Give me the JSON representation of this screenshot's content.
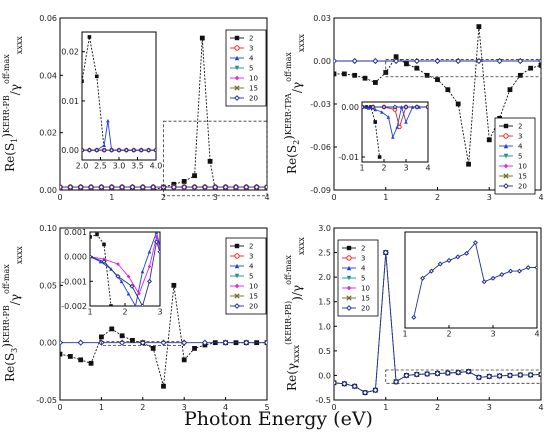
{
  "figure": {
    "xlabel": "Photon Energy  (eV)"
  },
  "series_styles": {
    "2": {
      "color": "#111111",
      "marker": "square-filled"
    },
    "3": {
      "color": "#e8241c",
      "marker": "circle-open"
    },
    "4": {
      "color": "#2040e0",
      "marker": "triangle-up"
    },
    "5": {
      "color": "#1a8f8f",
      "marker": "triangle-down"
    },
    "10": {
      "color": "#e020e0",
      "marker": "diamond"
    },
    "15": {
      "color": "#6b6b1a",
      "marker": "x"
    },
    "20": {
      "color": "#203090",
      "marker": "diamond-open"
    }
  },
  "chart_data": [
    {
      "id": "p1",
      "type": "line",
      "ylabel_main": "Re(S",
      "ylabel_sub": "1",
      "ylabel_tail": ")",
      "ylabel_sup": "KERR-PB",
      "ylabel_tail2": "/γ",
      "ylabel_sup2": "off-max",
      "ylabel_sub2": "xxxx",
      "xlim": [
        0,
        4
      ],
      "ylim": [
        0,
        0.06
      ],
      "xticks": [
        "0",
        "1",
        "2",
        "3",
        "4"
      ],
      "yticks": [
        "0.00",
        "0.02",
        "0.04",
        "0.06"
      ],
      "legend": [
        "2",
        "3",
        "4",
        "5",
        "10",
        "15",
        "20"
      ],
      "series": [
        {
          "name": "2",
          "x": [
            0,
            0.2,
            0.4,
            0.6,
            0.8,
            1.0,
            1.2,
            1.4,
            1.6,
            1.8,
            2.0,
            2.2,
            2.4,
            2.6,
            2.75,
            2.9,
            3.0,
            3.2,
            3.4,
            3.6,
            3.8,
            4.0
          ],
          "y": [
            0,
            0,
            0,
            0,
            0,
            0,
            0,
            0,
            0,
            0,
            0.001,
            0.002,
            0.003,
            0.005,
            0.053,
            0.01,
            0,
            0,
            0,
            0,
            0,
            0
          ]
        },
        {
          "name": "3",
          "x": [
            0,
            0.2,
            0.4,
            0.6,
            0.8,
            1.0,
            1.2,
            1.4,
            1.6,
            1.8,
            2.0,
            2.2,
            2.4,
            2.6,
            2.8,
            3.0,
            3.2,
            3.4,
            3.6,
            3.8,
            4.0
          ],
          "y": [
            0.001,
            0.001,
            0.001,
            0.001,
            0.001,
            0.001,
            0.001,
            0.001,
            0.001,
            0.001,
            0.001,
            0.001,
            0.001,
            0.001,
            0.001,
            0.001,
            0.001,
            0.001,
            0.001,
            0.001,
            0.001
          ]
        },
        {
          "name": "20",
          "x": [
            0,
            0.2,
            0.4,
            0.6,
            0.8,
            1.0,
            1.2,
            1.4,
            1.6,
            1.8,
            2.0,
            2.2,
            2.4,
            2.6,
            2.8,
            3.0,
            3.2,
            3.4,
            3.6,
            3.8,
            4.0
          ],
          "y": [
            0.001,
            0.001,
            0.001,
            0.001,
            0.001,
            0.001,
            0.001,
            0.001,
            0.001,
            0.001,
            0.001,
            0.001,
            0.001,
            0.001,
            0.001,
            0.001,
            0.001,
            0.001,
            0.001,
            0.001,
            0.001
          ]
        }
      ],
      "inset": {
        "xlim": [
          2.0,
          4.0
        ],
        "ylim": [
          -0.002,
          0.024
        ],
        "xticks": [
          "2.0",
          "2.5",
          "3.0",
          "3.5",
          "4.0"
        ],
        "yticks": [
          "0.00",
          "0.01",
          "0.02"
        ],
        "series": [
          {
            "name": "2",
            "x": [
              2.0,
              2.2,
              2.4,
              2.6
            ],
            "y": [
              0.014,
              0.023,
              0.015,
              0.0
            ]
          },
          {
            "name": "3",
            "x": [
              2.0,
              2.2,
              2.4,
              2.6,
              2.8,
              3.0,
              3.2,
              3.4,
              3.6,
              3.8,
              4.0
            ],
            "y": [
              0,
              0,
              0,
              0,
              0,
              0,
              0,
              0,
              0,
              0,
              0
            ]
          },
          {
            "name": "4",
            "x": [
              2.0,
              2.2,
              2.4,
              2.6,
              2.7,
              2.8,
              3.0,
              3.2,
              3.4,
              3.6,
              3.8,
              4.0
            ],
            "y": [
              0,
              0,
              0,
              0.001,
              0.006,
              0,
              0,
              0,
              0,
              0,
              0,
              0
            ]
          },
          {
            "name": "20",
            "x": [
              2.0,
              2.2,
              2.4,
              2.6,
              2.8,
              3.0,
              3.2,
              3.4,
              3.6,
              3.8,
              4.0
            ],
            "y": [
              0,
              0,
              0,
              0,
              0,
              0,
              0,
              0,
              0,
              0,
              0
            ]
          }
        ]
      }
    },
    {
      "id": "p2",
      "type": "line",
      "ylabel_main": "Re(S",
      "ylabel_sub": "2",
      "ylabel_tail": ")",
      "ylabel_sup": "KERR-TPA",
      "ylabel_tail2": "/γ",
      "ylabel_sup2": "off-max",
      "ylabel_sub2": "xxxx",
      "xlim": [
        0,
        4
      ],
      "ylim": [
        -0.09,
        0.03
      ],
      "xticks": [
        "0",
        "1",
        "2",
        "3",
        "4"
      ],
      "yticks": [
        "-0.09",
        "-0.06",
        "-0.03",
        "0.00",
        "0.03"
      ],
      "legend": [
        "2",
        "3",
        "4",
        "5",
        "10",
        "15",
        "20"
      ],
      "series": [
        {
          "name": "2",
          "x": [
            0,
            0.2,
            0.4,
            0.6,
            0.8,
            1.0,
            1.2,
            1.4,
            1.6,
            1.8,
            2.0,
            2.2,
            2.4,
            2.6,
            2.8,
            3.0,
            3.2,
            3.4,
            3.6,
            3.8,
            4.0
          ],
          "y": [
            -0.009,
            -0.009,
            -0.01,
            -0.012,
            -0.015,
            -0.008,
            0.003,
            -0.002,
            -0.005,
            -0.01,
            -0.013,
            -0.02,
            -0.03,
            -0.072,
            0.024,
            -0.055,
            -0.04,
            -0.02,
            -0.01,
            -0.005,
            -0.003
          ]
        },
        {
          "name": "20",
          "x": [
            0,
            0.4,
            0.8,
            1.2,
            1.6,
            2.0,
            2.4,
            2.8,
            3.2,
            3.6,
            4.0
          ],
          "y": [
            0,
            0,
            0,
            0,
            0,
            0,
            0,
            0,
            0,
            0,
            0
          ]
        }
      ],
      "inset": {
        "xlim": [
          1,
          4
        ],
        "ylim": [
          -0.011,
          0.001
        ],
        "xticks": [
          "1",
          "2",
          "3",
          "4"
        ],
        "yticks": [
          "-0.01",
          "0.00"
        ],
        "series": [
          {
            "name": "2",
            "x": [
              1.0,
              1.2,
              1.4,
              1.6,
              1.8
            ],
            "y": [
              0,
              0,
              0,
              -0.003,
              -0.01
            ]
          },
          {
            "name": "3",
            "x": [
              1.0,
              1.5,
              2.0,
              2.5,
              2.7,
              3.0,
              3.5,
              4.0
            ],
            "y": [
              0,
              0,
              0,
              -0.0005,
              -0.004,
              0,
              0,
              0
            ]
          },
          {
            "name": "4",
            "x": [
              1.0,
              1.3,
              1.6,
              1.9,
              2.2,
              2.4,
              2.6,
              2.8,
              3.0,
              3.3,
              3.6,
              4.0
            ],
            "y": [
              0,
              -0.0002,
              -0.0005,
              -0.001,
              -0.002,
              -0.006,
              -0.004,
              0,
              -0.003,
              0,
              0,
              0
            ]
          },
          {
            "name": "20",
            "x": [
              1.0,
              1.5,
              2.0,
              2.5,
              3.0,
              3.5,
              4.0
            ],
            "y": [
              0,
              0,
              0,
              0,
              0,
              0,
              0
            ]
          }
        ]
      }
    },
    {
      "id": "p3",
      "type": "line",
      "ylabel_main": "Re(S",
      "ylabel_sub": "3",
      "ylabel_tail": ")",
      "ylabel_sup": "KERR-PB",
      "ylabel_tail2": "/γ",
      "ylabel_sup2": "off-max",
      "ylabel_sub2": "xxxx",
      "xlim": [
        0,
        5
      ],
      "ylim": [
        -0.05,
        0.1
      ],
      "xticks": [
        "0",
        "1",
        "2",
        "3",
        "4",
        "5"
      ],
      "yticks": [
        "-0.05",
        "0.00",
        "0.05",
        "0.10"
      ],
      "legend": [
        "2",
        "3",
        "4",
        "5",
        "10",
        "15",
        "20"
      ],
      "series": [
        {
          "name": "2",
          "x": [
            0,
            0.25,
            0.5,
            0.75,
            1.0,
            1.25,
            1.5,
            1.75,
            2.0,
            2.25,
            2.5,
            2.75,
            3.0,
            3.25,
            3.5,
            3.75,
            4.0,
            4.25,
            4.5,
            4.75,
            5.0
          ],
          "y": [
            -0.01,
            -0.012,
            -0.015,
            -0.018,
            0.005,
            0.012,
            0.006,
            0.002,
            0.0,
            -0.005,
            -0.038,
            0.05,
            -0.015,
            -0.005,
            -0.002,
            0,
            0,
            0,
            0,
            0,
            0
          ]
        },
        {
          "name": "20",
          "x": [
            0,
            0.5,
            1.0,
            1.5,
            2.0,
            2.5,
            3.0,
            3.5,
            4.0,
            4.5,
            5.0
          ],
          "y": [
            0,
            0,
            0,
            0,
            0,
            0,
            0,
            0,
            0,
            0,
            0
          ]
        }
      ],
      "inset": {
        "xlim": [
          1,
          3
        ],
        "ylim": [
          -0.002,
          0.001
        ],
        "xticks": [
          "1",
          "2",
          "3"
        ],
        "yticks": [
          "-0.002",
          "-0.001",
          "0.000",
          "0.001"
        ],
        "series": [
          {
            "name": "2",
            "x": [
              1.0,
              1.2,
              1.4,
              1.6
            ],
            "y": [
              0.0008,
              0.0009,
              0.0005,
              -0.002
            ]
          },
          {
            "name": "4",
            "x": [
              1.0,
              1.3,
              1.6,
              1.9,
              2.1,
              2.3,
              2.5,
              2.7,
              2.9,
              3.0
            ],
            "y": [
              0,
              -0.0002,
              -0.0005,
              -0.001,
              -0.0015,
              -0.002,
              -0.0006,
              0.0002,
              0.001,
              0.0004
            ]
          },
          {
            "name": "10",
            "x": [
              1.0,
              1.4,
              1.8,
              2.1,
              2.4,
              2.7,
              2.9,
              3.0
            ],
            "y": [
              0,
              -0.0001,
              -0.0003,
              -0.0008,
              -0.0015,
              -0.0004,
              0.0008,
              0.0003
            ]
          },
          {
            "name": "20",
            "x": [
              1.0,
              1.4,
              1.8,
              2.2,
              2.5,
              2.7,
              2.9,
              3.0
            ],
            "y": [
              0,
              -0.0002,
              -0.0008,
              -0.0012,
              -0.002,
              -0.001,
              0.0006,
              0.0002
            ]
          }
        ]
      }
    },
    {
      "id": "p4",
      "type": "line",
      "ylabel_main": "Re(γ",
      "ylabel_sub": "xxxx",
      "ylabel_tail": "",
      "ylabel_sup": "(KERR-PB)",
      "ylabel_tail2": ")/γ",
      "ylabel_sup2": "off-max",
      "ylabel_sub2": "xxxx",
      "xlim": [
        0,
        4
      ],
      "ylim": [
        -0.5,
        3.0
      ],
      "xticks": [
        "0",
        "1",
        "2",
        "3",
        "4"
      ],
      "yticks": [
        "-0.5",
        "0.0",
        "0.5",
        "1.0",
        "1.5",
        "2.0",
        "2.5",
        "3.0"
      ],
      "legend": [
        "2",
        "3",
        "4",
        "5",
        "10",
        "15",
        "20"
      ],
      "series": [
        {
          "name": "2",
          "x": [
            0,
            0.2,
            0.4,
            0.6,
            0.8,
            1.0,
            1.2,
            1.4,
            1.6,
            1.8,
            2.0,
            2.2,
            2.4,
            2.6,
            2.8,
            3.0,
            3.2,
            3.4,
            3.6,
            3.8,
            4.0
          ],
          "y": [
            -0.15,
            -0.17,
            -0.22,
            -0.35,
            -0.3,
            2.5,
            -0.13,
            0.0,
            0.02,
            0.03,
            0.04,
            0.05,
            0.06,
            0.08,
            -0.04,
            -0.02,
            -0.01,
            0,
            0.01,
            0.01,
            0.02
          ]
        },
        {
          "name": "20",
          "x": [
            0,
            0.2,
            0.4,
            0.6,
            0.8,
            1.0,
            1.2,
            1.4,
            1.6,
            1.8,
            2.0,
            2.2,
            2.4,
            2.6,
            2.8,
            3.0,
            3.2,
            3.4,
            3.6,
            3.8,
            4.0
          ],
          "y": [
            -0.15,
            -0.17,
            -0.22,
            -0.35,
            -0.3,
            2.5,
            -0.13,
            0.0,
            0.02,
            0.03,
            0.04,
            0.05,
            0.06,
            0.08,
            -0.04,
            -0.02,
            -0.01,
            0,
            0.01,
            0.01,
            0.02
          ]
        }
      ],
      "inset": {
        "xlim": [
          1,
          4
        ],
        "ylim": [
          -0.16,
          0.11
        ],
        "xticks": [
          "1",
          "2",
          "3",
          "4"
        ],
        "yticks": [],
        "series": [
          {
            "name": "20",
            "x": [
              1.2,
              1.4,
              1.6,
              1.8,
              2.0,
              2.2,
              2.4,
              2.6,
              2.8,
              3.0,
              3.2,
              3.4,
              3.6,
              3.8,
              4.0
            ],
            "y": [
              -0.13,
              -0.02,
              0.0,
              0.02,
              0.03,
              0.04,
              0.05,
              0.08,
              -0.03,
              -0.02,
              -0.01,
              0.0,
              0.0,
              0.01,
              0.01
            ]
          }
        ]
      }
    }
  ]
}
